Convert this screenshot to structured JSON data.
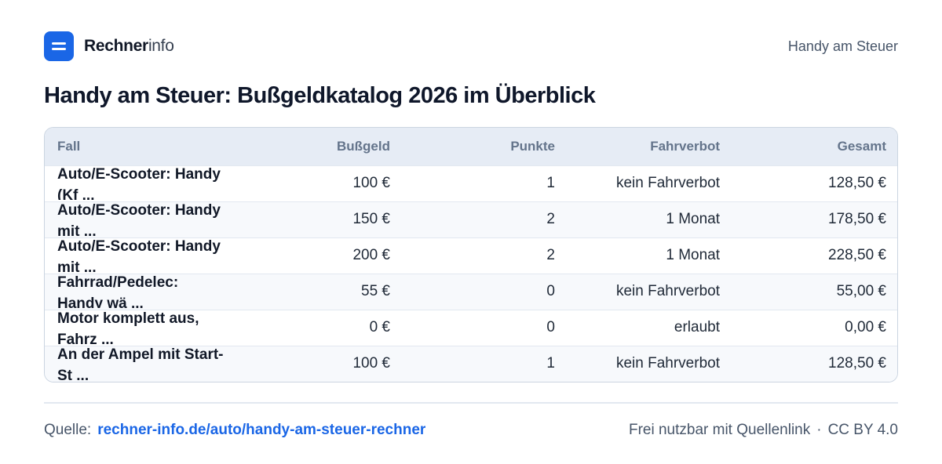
{
  "brand": {
    "name_bold": "Rechner",
    "name_light": "info"
  },
  "header": {
    "right_label": "Handy am Steuer"
  },
  "page": {
    "title": "Handy am Steuer: Bußgeldkatalog 2026 im Überblick"
  },
  "table": {
    "headers": [
      "Fall",
      "Bußgeld",
      "Punkte",
      "Fahrverbot",
      "Gesamt"
    ],
    "rows": [
      {
        "fall": "Auto/E-Scooter: Handy (Kf ...",
        "bussgeld": "100 €",
        "punkte": "1",
        "fahrverbot": "kein Fahrverbot",
        "gesamt": "128,50 €"
      },
      {
        "fall": "Auto/E-Scooter: Handy mit ...",
        "bussgeld": "150 €",
        "punkte": "2",
        "fahrverbot": "1 Monat",
        "gesamt": "178,50 €"
      },
      {
        "fall": "Auto/E-Scooter: Handy mit ...",
        "bussgeld": "200 €",
        "punkte": "2",
        "fahrverbot": "1 Monat",
        "gesamt": "228,50 €"
      },
      {
        "fall": "Fahrrad/Pedelec: Handy wä ...",
        "bussgeld": "55 €",
        "punkte": "0",
        "fahrverbot": "kein Fahrverbot",
        "gesamt": "55,00 €"
      },
      {
        "fall": "Motor komplett aus, Fahrz ...",
        "bussgeld": "0 €",
        "punkte": "0",
        "fahrverbot": "erlaubt",
        "gesamt": "0,00 €"
      },
      {
        "fall": "An der Ampel mit Start-St ...",
        "bussgeld": "100 €",
        "punkte": "1",
        "fahrverbot": "kein Fahrverbot",
        "gesamt": "128,50 €"
      }
    ]
  },
  "footer": {
    "source_label": "Quelle:",
    "source_link": "rechner-info.de/auto/handy-am-steuer-rechner",
    "license_text": "Frei nutzbar mit Quellenlink",
    "separator": "·",
    "license": "CC BY 4.0"
  },
  "colors": {
    "accent": "#1a66e6",
    "header_bg": "#e6ecf5",
    "row_alt": "#f7f9fc"
  },
  "icons": {
    "logo": "rechner-logo-icon"
  }
}
